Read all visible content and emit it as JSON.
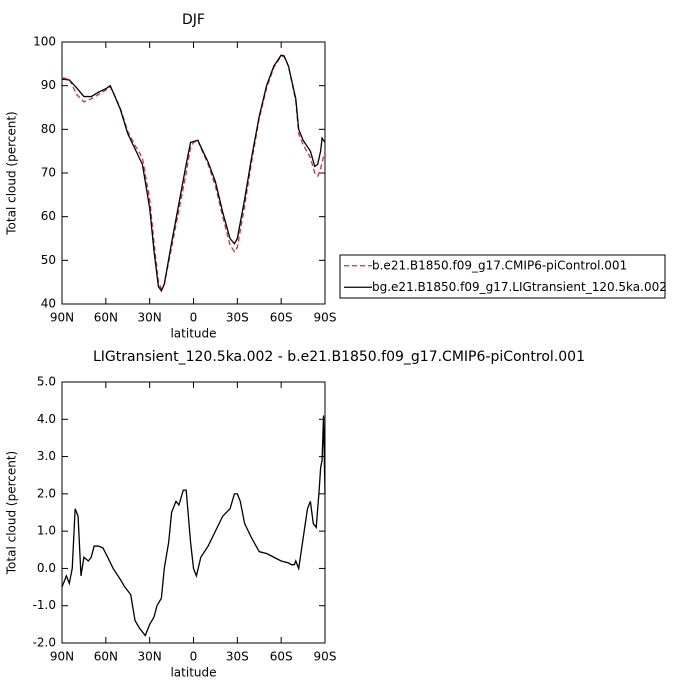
{
  "chart_data": [
    {
      "type": "line",
      "title": "DJF",
      "xlabel": "latitude",
      "ylabel": "Total cloud (percent)",
      "x": [
        90,
        85,
        80,
        75,
        70,
        65,
        60,
        57,
        55,
        50,
        45,
        40,
        35,
        30,
        27,
        24,
        22,
        20,
        15,
        10,
        5,
        2,
        0,
        -3,
        -5,
        -10,
        -15,
        -20,
        -25,
        -28,
        -30,
        -35,
        -40,
        -45,
        -50,
        -55,
        -60,
        -62,
        -65,
        -70,
        -72,
        -75,
        -80,
        -83,
        -85,
        -87,
        -88,
        -90
      ],
      "series": [
        {
          "name": "b.e21.B1850.f09_g17.CMIP6-piControl.001",
          "color": "#e8242c",
          "dash": true,
          "values": [
            91.8,
            91.5,
            88,
            86.3,
            87,
            88,
            89,
            89.7,
            88.5,
            84.8,
            79.5,
            76.3,
            73.5,
            64,
            54,
            45,
            43.5,
            44.5,
            53,
            61.5,
            70,
            76,
            77,
            77.5,
            75.8,
            72,
            67,
            60,
            53.5,
            52,
            53,
            62.5,
            73,
            82.5,
            89.5,
            94.2,
            96.8,
            96.7,
            94.4,
            86.5,
            79,
            76.5,
            73.5,
            70,
            69.3,
            71,
            72.5,
            75
          ]
        },
        {
          "name": "bg.e21.B1850.f09_g17.LIGtransient_120.5ka.002",
          "color": "#000000",
          "dash": false,
          "values": [
            91.5,
            91.3,
            89.5,
            87.5,
            87.5,
            88.5,
            89.3,
            90,
            88.5,
            84.5,
            79,
            75.5,
            72,
            62,
            52,
            44,
            43,
            44.5,
            54,
            63,
            72,
            77,
            77.2,
            77.5,
            76,
            72.5,
            68,
            61,
            55,
            53.8,
            55,
            64,
            74,
            83,
            90,
            94.5,
            97,
            96.8,
            94.5,
            87,
            80,
            77.5,
            75,
            71.5,
            72,
            75,
            78,
            77
          ]
        }
      ],
      "xlim": [
        90,
        -90
      ],
      "xticks": [
        {
          "value": 90,
          "label": "90N"
        },
        {
          "value": 60,
          "label": "60N"
        },
        {
          "value": 30,
          "label": "30N"
        },
        0,
        {
          "value": -30,
          "label": "30S"
        },
        {
          "value": -60,
          "label": "60S"
        },
        {
          "value": -90,
          "label": "90S"
        }
      ],
      "ylim": [
        40,
        100
      ],
      "yticks": [
        40,
        50,
        60,
        70,
        80,
        90,
        100
      ]
    },
    {
      "type": "line",
      "title": "LIGtransient_120.5ka.002 - b.e21.B1850.f09_g17.CMIP6-piControl.001",
      "xlabel": "latitude",
      "ylabel": "Total cloud (percent)",
      "x": [
        90,
        87,
        85,
        83,
        81,
        79,
        77,
        75,
        72,
        70,
        68,
        65,
        62,
        60,
        55,
        50,
        47,
        43,
        40,
        37,
        33,
        30,
        27,
        25,
        22,
        20,
        17,
        15,
        12,
        10,
        7,
        5,
        2,
        0,
        -2,
        -5,
        -10,
        -15,
        -20,
        -25,
        -28,
        -30,
        -32,
        -35,
        -40,
        -45,
        -50,
        -55,
        -60,
        -65,
        -67,
        -69,
        -70,
        -72,
        -75,
        -78,
        -80,
        -82,
        -84,
        -85,
        -86,
        -87,
        -88,
        -89,
        -90
      ],
      "series": [
        {
          "name": null,
          "color": "#000000",
          "dash": false,
          "values": [
            -0.5,
            -0.2,
            -0.4,
            0,
            1.6,
            1.4,
            -0.2,
            0.3,
            0.2,
            0.3,
            0.6,
            0.6,
            0.55,
            0.4,
            0,
            -0.3,
            -0.5,
            -0.7,
            -1.4,
            -1.6,
            -1.8,
            -1.5,
            -1.3,
            -1.0,
            -0.8,
            0,
            0.7,
            1.5,
            1.8,
            1.7,
            2.1,
            2.1,
            0.7,
            0,
            -0.2,
            0.3,
            0.6,
            1.0,
            1.4,
            1.6,
            2.0,
            2.0,
            1.8,
            1.2,
            0.8,
            0.45,
            0.4,
            0.3,
            0.2,
            0.15,
            0.1,
            0.1,
            0.2,
            0,
            0.8,
            1.6,
            1.8,
            1.2,
            1.1,
            1.6,
            2.1,
            2.7,
            2.9,
            4.1,
            2.0
          ]
        }
      ],
      "xlim": [
        90,
        -90
      ],
      "xticks": [
        {
          "value": 90,
          "label": "90N"
        },
        {
          "value": 60,
          "label": "60N"
        },
        {
          "value": 30,
          "label": "30N"
        },
        0,
        {
          "value": -30,
          "label": "30S"
        },
        {
          "value": -60,
          "label": "60S"
        },
        {
          "value": -90,
          "label": "90S"
        }
      ],
      "ylim": [
        -2,
        5
      ],
      "yticks": [
        {
          "value": -2,
          "label": "-2.0"
        },
        {
          "value": -1,
          "label": "-1.0"
        },
        {
          "value": 0,
          "label": "0.0"
        },
        {
          "value": 1,
          "label": "1.0"
        },
        {
          "value": 2,
          "label": "2.0"
        },
        {
          "value": 3,
          "label": "3.0"
        },
        {
          "value": 4,
          "label": "4.0"
        },
        {
          "value": 5,
          "label": "5.0"
        }
      ]
    }
  ]
}
